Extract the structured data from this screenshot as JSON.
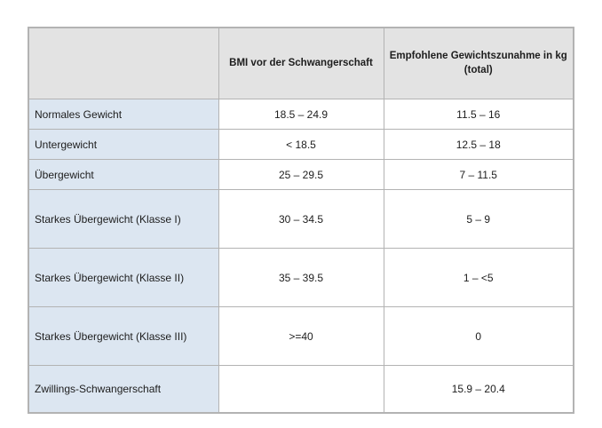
{
  "table": {
    "headers": [
      "",
      "BMI vor der Schwangerschaft",
      "Empfohlene Gewichtszunahme in kg\n(total)"
    ],
    "columns": [
      "category",
      "bmi",
      "gain"
    ],
    "rows": [
      {
        "category": "Normales Gewicht",
        "bmi": "18.5 – 24.9",
        "gain": "11.5 – 16"
      },
      {
        "category": "Untergewicht",
        "bmi": "< 18.5",
        "gain": "12.5 – 18"
      },
      {
        "category": "Übergewicht",
        "bmi": "25 – 29.5",
        "gain": "7 – 11.5"
      },
      {
        "category": "Starkes Übergewicht (Klasse I)",
        "bmi": "30 – 34.5",
        "gain": "5 – 9"
      },
      {
        "category": "Starkes Übergewicht (Klasse II)",
        "bmi": "35 – 39.5",
        "gain": "1 – <5"
      },
      {
        "category": "Starkes Übergewicht (Klasse III)",
        "bmi": ">=40",
        "gain": "0"
      },
      {
        "category": "Zwillings-Schwangerschaft",
        "bmi": "",
        "gain": "15.9 – 20.4"
      }
    ]
  },
  "colors": {
    "header_bg": "#e3e3e3",
    "category_bg": "#dce6f1",
    "border": "#b3b3b3",
    "text": "#1d1d1d",
    "page_bg": "#ffffff"
  }
}
